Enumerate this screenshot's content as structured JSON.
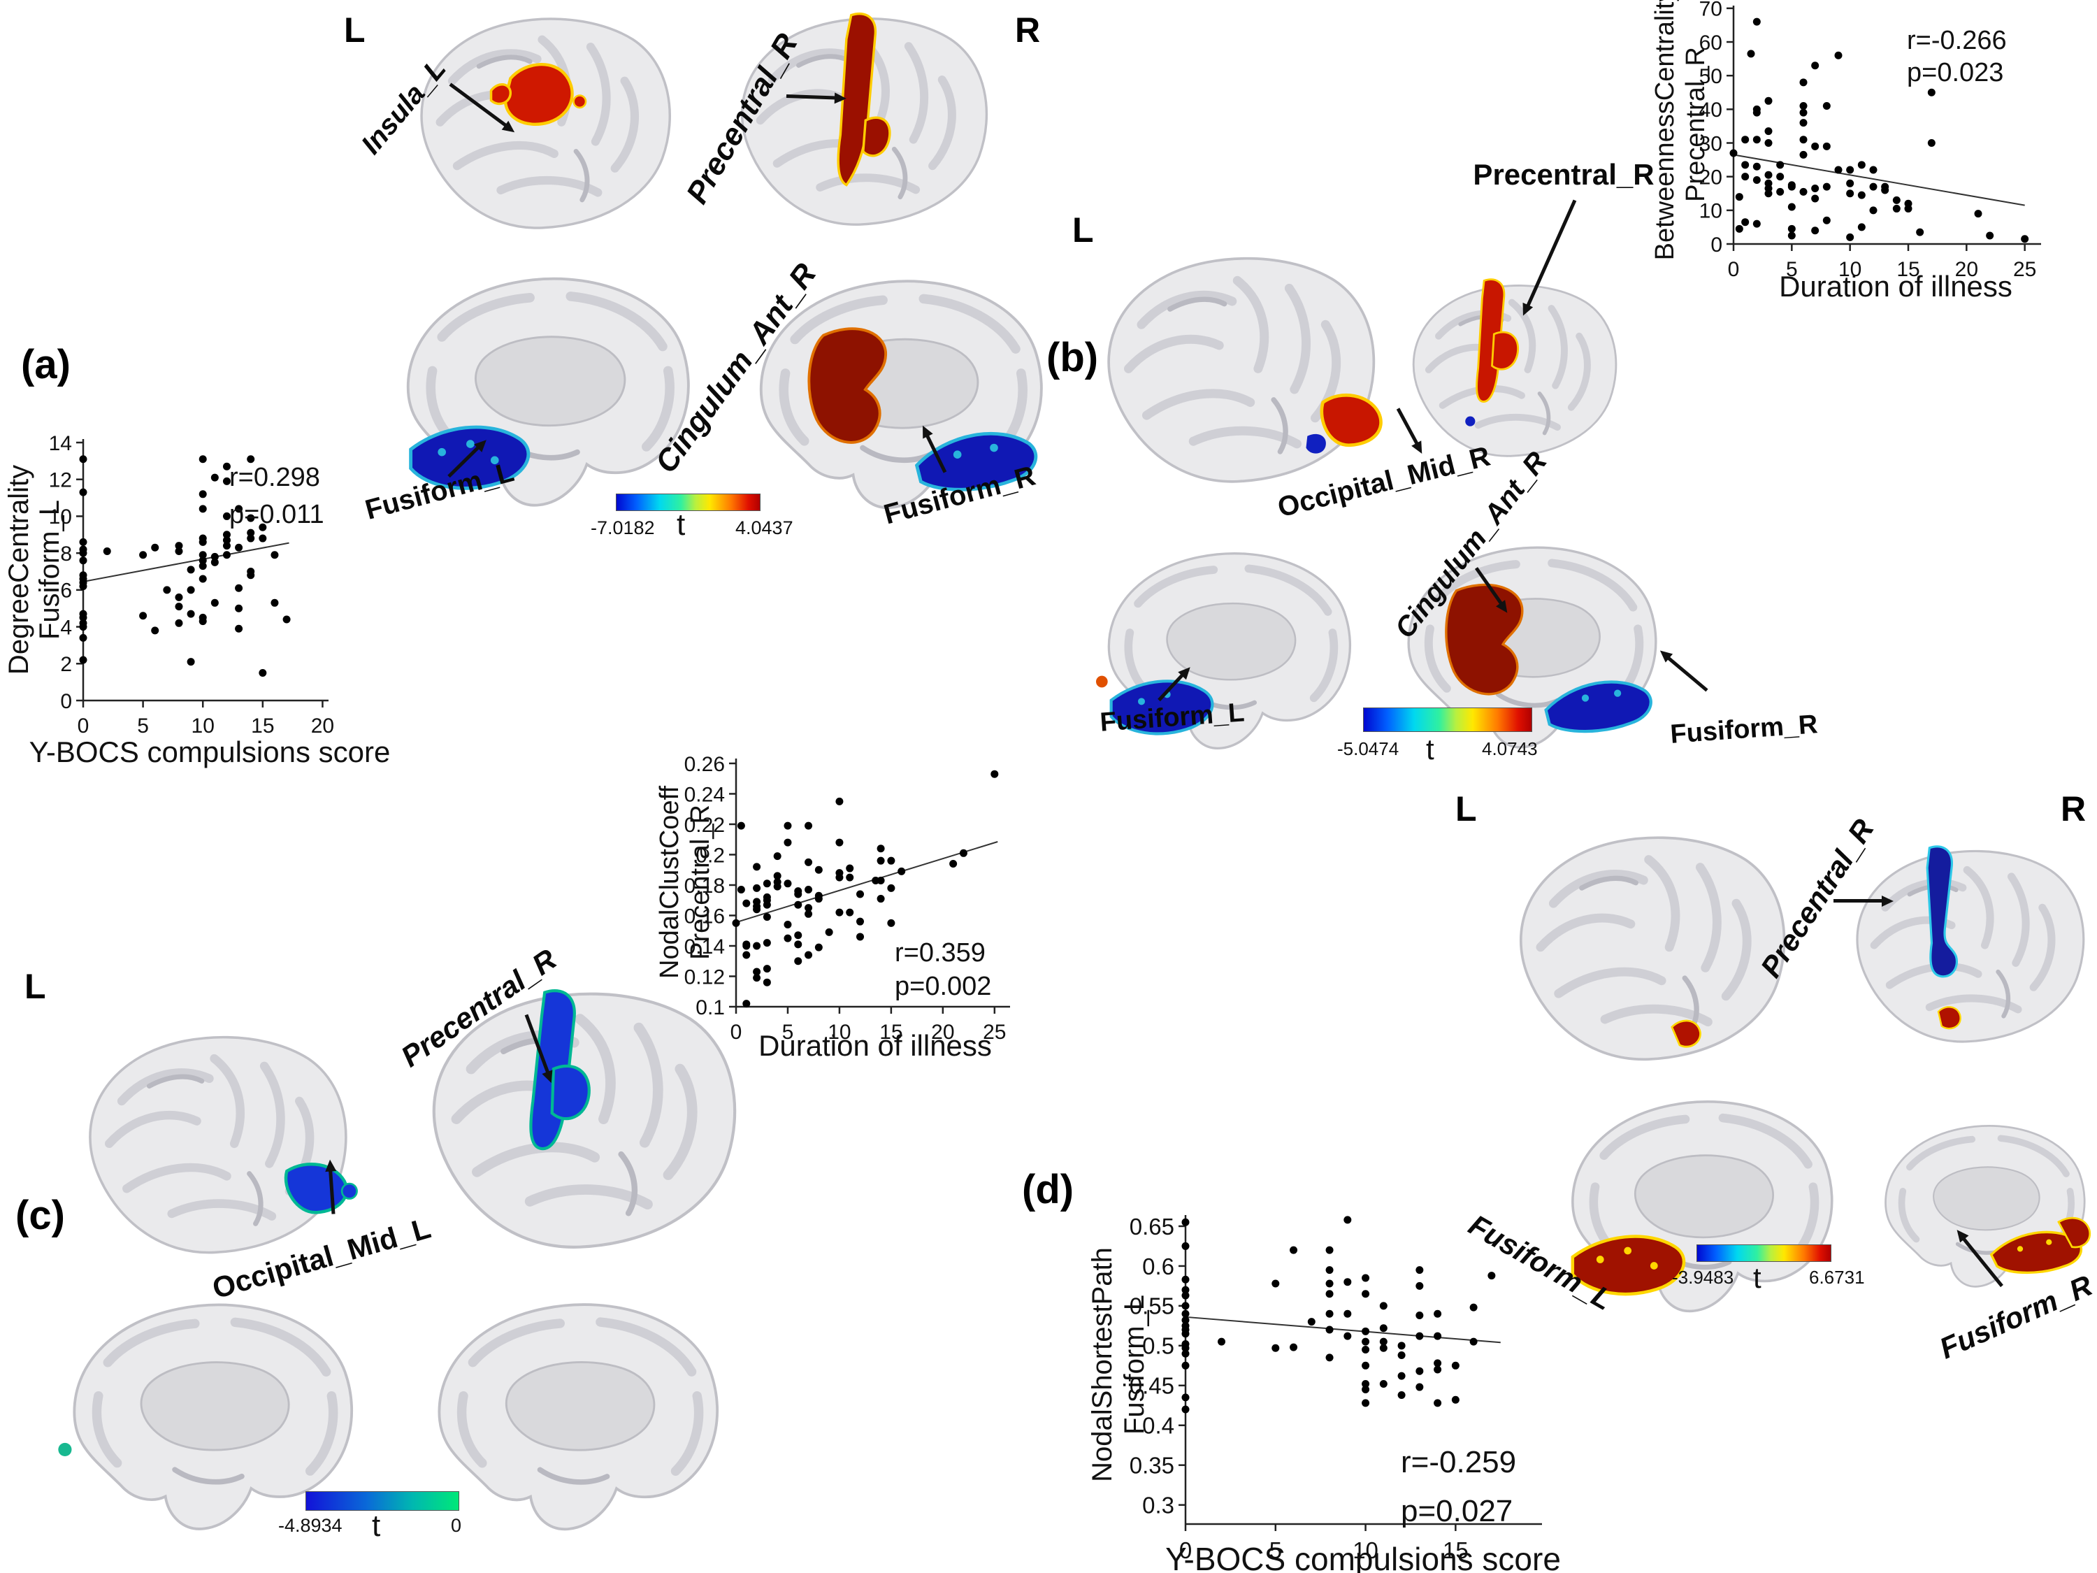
{
  "colors": {
    "positive_hot": "#c81600",
    "dark_red": "#8e1200",
    "negative_blue": "#1018b4",
    "dark_blue": "#141c9e",
    "medium_blue": "#1536d8",
    "teal_fringe": "#00b894",
    "cyan_fringe": "#28b4dc",
    "yellow_fringe": "#ffcc00",
    "scatter_point": "#000000"
  },
  "panel_a": {
    "letter": "(a)",
    "left_hemi": "L",
    "right_hemi": "R",
    "labels": {
      "insula": "Insula_L",
      "precentral": "Precentral_R",
      "cingulum": "Cingulum_Ant_R",
      "fusiform_l": "Fusiform_L",
      "fusiform_r": "Fusiform_R"
    },
    "colorbar": {
      "min": "-7.0182",
      "t": "t",
      "max": "4.0437"
    }
  },
  "panel_b": {
    "letter": "(b)",
    "left_hemi": "L",
    "labels": {
      "precentral": "Precentral_R",
      "occipital": "Occipital_Mid_R",
      "cingulum": "Cingulum_Ant_R",
      "fusiform_l": "Fusiform_L",
      "fusiform_r": "Fusiform_R"
    },
    "colorbar": {
      "min": "-5.0474",
      "t": "t",
      "max": "4.0743"
    }
  },
  "panel_c": {
    "letter": "(c)",
    "left_hemi": "L",
    "labels": {
      "precentral": "Precentral_R",
      "occipital": "Occipital_Mid_L"
    },
    "colorbar": {
      "min": "-4.8934",
      "t": "t",
      "max": "0"
    }
  },
  "panel_d": {
    "letter": "(d)",
    "left_hemi": "L",
    "right_hemi": "R",
    "labels": {
      "precentral": "Precentral_R",
      "fusiform_l": "Fusiform_L",
      "fusiform_r": "Fusiform_R"
    },
    "colorbar": {
      "min": "-3.9483",
      "t": "t",
      "max": "6.6731"
    }
  },
  "chart_data": [
    {
      "id": "a",
      "type": "scatter",
      "xlabel": "Y-BOCS compulsions score",
      "ylabel_lines": [
        "DegreeCentrality",
        "Fusiform_L"
      ],
      "xlim": [
        0,
        20.5
      ],
      "ylim": [
        0,
        14.19
      ],
      "xticks": [
        0,
        5,
        10,
        15,
        20
      ],
      "yticks": [
        0,
        2,
        4,
        6,
        8,
        10,
        12,
        14
      ],
      "stats": [
        "r=0.298",
        "p=0.011"
      ],
      "fit": {
        "x": [
          0,
          17.2
        ],
        "y": [
          6.45,
          8.55
        ]
      },
      "points": [
        [
          0,
          13.1
        ],
        [
          0,
          11.3
        ],
        [
          0,
          8.6
        ],
        [
          0,
          8.2
        ],
        [
          0,
          8
        ],
        [
          0,
          7.6
        ],
        [
          0,
          6.8
        ],
        [
          0,
          6.6
        ],
        [
          0,
          6.4
        ],
        [
          0,
          6.2
        ],
        [
          0,
          4.7
        ],
        [
          0,
          4.5
        ],
        [
          0,
          4.2
        ],
        [
          0,
          4
        ],
        [
          0,
          3.4
        ],
        [
          0,
          2.2
        ],
        [
          2,
          8.1
        ],
        [
          5,
          7.9
        ],
        [
          5,
          4.6
        ],
        [
          6,
          8.3
        ],
        [
          6,
          3.8
        ],
        [
          7,
          6
        ],
        [
          8,
          8.4
        ],
        [
          8,
          8.1
        ],
        [
          8,
          5.6
        ],
        [
          8,
          5.1
        ],
        [
          8,
          4.2
        ],
        [
          9,
          7.1
        ],
        [
          9,
          6
        ],
        [
          9,
          4.7
        ],
        [
          9,
          2.1
        ],
        [
          10,
          13.1
        ],
        [
          10,
          11.2
        ],
        [
          10,
          10.4
        ],
        [
          10,
          8.8
        ],
        [
          10,
          8.6
        ],
        [
          10,
          7.9
        ],
        [
          10,
          7.6
        ],
        [
          10,
          7.3
        ],
        [
          10,
          6.6
        ],
        [
          10,
          4.5
        ],
        [
          10,
          4.3
        ],
        [
          11,
          12.1
        ],
        [
          11,
          7.8
        ],
        [
          11,
          7.5
        ],
        [
          11,
          5.3
        ],
        [
          12,
          12.7
        ],
        [
          12,
          11.9
        ],
        [
          12,
          10
        ],
        [
          12,
          9
        ],
        [
          12,
          8.7
        ],
        [
          12,
          8.4
        ],
        [
          12,
          7.9
        ],
        [
          13,
          10.4
        ],
        [
          13,
          8.3
        ],
        [
          13,
          6.1
        ],
        [
          13,
          5
        ],
        [
          13,
          3.9
        ],
        [
          14,
          13.1
        ],
        [
          14,
          9.9
        ],
        [
          14,
          9.1
        ],
        [
          14,
          8.8
        ],
        [
          14,
          7
        ],
        [
          14,
          6.8
        ],
        [
          15,
          9.4
        ],
        [
          15,
          8.8
        ],
        [
          15,
          1.5
        ],
        [
          16,
          7.9
        ],
        [
          16,
          5.3
        ],
        [
          17,
          4.4
        ]
      ]
    },
    {
      "id": "b",
      "type": "scatter",
      "xlabel": "Duration of illness",
      "ylabel_lines": [
        "BetweennessCentrality",
        "Precentral_R"
      ],
      "xlim": [
        0,
        26.4
      ],
      "ylim": [
        0,
        70.8
      ],
      "xticks": [
        0,
        5,
        10,
        15,
        20,
        25
      ],
      "yticks": [
        0,
        10,
        20,
        30,
        40,
        50,
        60,
        70
      ],
      "stats": [
        "r=-0.266",
        "p=0.023"
      ],
      "fit": {
        "x": [
          0,
          25
        ],
        "y": [
          26.5,
          11.5
        ]
      },
      "points": [
        [
          0,
          27
        ],
        [
          0.5,
          14
        ],
        [
          0.5,
          4.5
        ],
        [
          1,
          31
        ],
        [
          1,
          23.5
        ],
        [
          1,
          20
        ],
        [
          1,
          6.5
        ],
        [
          1.5,
          56.5
        ],
        [
          2,
          66
        ],
        [
          2,
          40
        ],
        [
          2,
          39
        ],
        [
          2,
          31
        ],
        [
          2,
          23
        ],
        [
          2,
          19
        ],
        [
          2,
          6
        ],
        [
          3,
          42.5
        ],
        [
          3,
          33.5
        ],
        [
          3,
          30
        ],
        [
          3,
          20.5
        ],
        [
          3,
          18
        ],
        [
          3,
          16.5
        ],
        [
          3,
          15
        ],
        [
          4,
          23.5
        ],
        [
          4,
          20
        ],
        [
          4,
          15.5
        ],
        [
          5,
          17.5
        ],
        [
          5,
          17
        ],
        [
          5,
          11
        ],
        [
          5,
          4.5
        ],
        [
          5,
          2.5
        ],
        [
          6,
          48
        ],
        [
          6,
          41
        ],
        [
          6,
          39
        ],
        [
          6,
          36
        ],
        [
          6,
          31
        ],
        [
          6,
          26.5
        ],
        [
          6,
          15.5
        ],
        [
          7,
          53
        ],
        [
          7,
          29
        ],
        [
          7,
          16.5
        ],
        [
          7,
          13.5
        ],
        [
          7,
          4
        ],
        [
          8,
          41
        ],
        [
          8,
          29
        ],
        [
          8,
          17
        ],
        [
          8,
          7
        ],
        [
          9,
          56
        ],
        [
          9,
          22
        ],
        [
          10,
          22
        ],
        [
          10,
          18
        ],
        [
          10,
          15
        ],
        [
          10,
          2
        ],
        [
          11,
          23.5
        ],
        [
          11,
          14.5
        ],
        [
          11,
          5
        ],
        [
          12,
          22
        ],
        [
          12,
          17
        ],
        [
          12,
          10
        ],
        [
          13,
          17
        ],
        [
          13,
          16
        ],
        [
          14,
          13
        ],
        [
          14,
          10.5
        ],
        [
          15,
          12
        ],
        [
          15,
          10.5
        ],
        [
          16,
          3.5
        ],
        [
          17,
          45
        ],
        [
          17,
          30
        ],
        [
          21,
          9
        ],
        [
          22,
          2.5
        ],
        [
          25,
          1.5
        ]
      ]
    },
    {
      "id": "c",
      "type": "scatter",
      "xlabel": "Duration of illness",
      "ylabel_lines": [
        "NodalClustCoeff",
        "Precentral_R"
      ],
      "xlim": [
        0,
        26.5
      ],
      "ylim": [
        0.1,
        0.2632
      ],
      "xticks": [
        0,
        5,
        10,
        15,
        20,
        25
      ],
      "yticks": [
        0.1,
        0.12,
        0.14,
        0.16,
        0.18,
        0.2,
        0.22,
        0.24,
        0.26
      ],
      "ytick_labels": [
        "0.1",
        "0.12",
        "0.14",
        "0.16",
        "0.18",
        "0.2",
        "0.22",
        "0.24",
        "0.26"
      ],
      "stats": [
        "r=0.359",
        "p=0.002"
      ],
      "fit": {
        "x": [
          0,
          25.3
        ],
        "y": [
          0.1555,
          0.2085
        ]
      },
      "points": [
        [
          0,
          0.155
        ],
        [
          0.5,
          0.219
        ],
        [
          0.5,
          0.177
        ],
        [
          1,
          0.168
        ],
        [
          1,
          0.141
        ],
        [
          1,
          0.14
        ],
        [
          1,
          0.134
        ],
        [
          1,
          0.102
        ],
        [
          2,
          0.192
        ],
        [
          2,
          0.178
        ],
        [
          2,
          0.169
        ],
        [
          2,
          0.166
        ],
        [
          2,
          0.164
        ],
        [
          2,
          0.14
        ],
        [
          2,
          0.123
        ],
        [
          2,
          0.119
        ],
        [
          3,
          0.181
        ],
        [
          3,
          0.172
        ],
        [
          3,
          0.17
        ],
        [
          3,
          0.167
        ],
        [
          3,
          0.159
        ],
        [
          3,
          0.142
        ],
        [
          3,
          0.125
        ],
        [
          3,
          0.116
        ],
        [
          4,
          0.199
        ],
        [
          4,
          0.186
        ],
        [
          4,
          0.182
        ],
        [
          4,
          0.179
        ],
        [
          5,
          0.219
        ],
        [
          5,
          0.208
        ],
        [
          5,
          0.181
        ],
        [
          5,
          0.154
        ],
        [
          5,
          0.145
        ],
        [
          6,
          0.176
        ],
        [
          6,
          0.174
        ],
        [
          6,
          0.167
        ],
        [
          6,
          0.147
        ],
        [
          6,
          0.141
        ],
        [
          6,
          0.13
        ],
        [
          7,
          0.219
        ],
        [
          7,
          0.195
        ],
        [
          7,
          0.177
        ],
        [
          7,
          0.165
        ],
        [
          7,
          0.161
        ],
        [
          7,
          0.134
        ],
        [
          8,
          0.19
        ],
        [
          8,
          0.173
        ],
        [
          8,
          0.171
        ],
        [
          8,
          0.139
        ],
        [
          9,
          0.149
        ],
        [
          10,
          0.235
        ],
        [
          10,
          0.208
        ],
        [
          10,
          0.188
        ],
        [
          10,
          0.185
        ],
        [
          10,
          0.162
        ],
        [
          11,
          0.191
        ],
        [
          11,
          0.185
        ],
        [
          11,
          0.162
        ],
        [
          12,
          0.174
        ],
        [
          12,
          0.156
        ],
        [
          12,
          0.146
        ],
        [
          13.5,
          0.183
        ],
        [
          14,
          0.204
        ],
        [
          14,
          0.196
        ],
        [
          14,
          0.183
        ],
        [
          14,
          0.171
        ],
        [
          15,
          0.196
        ],
        [
          15,
          0.178
        ],
        [
          15,
          0.155
        ],
        [
          16,
          0.189
        ],
        [
          21,
          0.194
        ],
        [
          22,
          0.201
        ],
        [
          25,
          0.253
        ]
      ]
    },
    {
      "id": "d",
      "type": "scatter",
      "xlabel": "Y-BOCS compulsions score",
      "ylabel_lines": [
        "NodalShortestPath",
        "Fusiform_L"
      ],
      "xlim": [
        0,
        19.8
      ],
      "ylim": [
        0.276,
        0.664
      ],
      "xticks": [
        0,
        5,
        10,
        15
      ],
      "yticks": [
        0.3,
        0.35,
        0.4,
        0.45,
        0.5,
        0.55,
        0.6,
        0.65
      ],
      "ytick_labels": [
        "0.3",
        "0.35",
        "0.4",
        "0.45",
        "0.5",
        "0.55",
        "0.6",
        "0.65"
      ],
      "stats": [
        "r=-0.259",
        "p=0.027"
      ],
      "fit": {
        "x": [
          0,
          17.5
        ],
        "y": [
          0.536,
          0.504
        ]
      },
      "points": [
        [
          0,
          0.655
        ],
        [
          0,
          0.625
        ],
        [
          0,
          0.583
        ],
        [
          0,
          0.57
        ],
        [
          0,
          0.563
        ],
        [
          0,
          0.55
        ],
        [
          0,
          0.54
        ],
        [
          0,
          0.532
        ],
        [
          0,
          0.525
        ],
        [
          0,
          0.52
        ],
        [
          0,
          0.515
        ],
        [
          0,
          0.502
        ],
        [
          0,
          0.497
        ],
        [
          0,
          0.49
        ],
        [
          0,
          0.475
        ],
        [
          0,
          0.435
        ],
        [
          0,
          0.42
        ],
        [
          2,
          0.505
        ],
        [
          5,
          0.578
        ],
        [
          5,
          0.497
        ],
        [
          6,
          0.62
        ],
        [
          6,
          0.498
        ],
        [
          7,
          0.53
        ],
        [
          8,
          0.62
        ],
        [
          8,
          0.595
        ],
        [
          8,
          0.578
        ],
        [
          8,
          0.565
        ],
        [
          8,
          0.54
        ],
        [
          8,
          0.52
        ],
        [
          8,
          0.485
        ],
        [
          9,
          0.658
        ],
        [
          9,
          0.58
        ],
        [
          9,
          0.54
        ],
        [
          9,
          0.512
        ],
        [
          10,
          0.585
        ],
        [
          10,
          0.565
        ],
        [
          10,
          0.518
        ],
        [
          10,
          0.505
        ],
        [
          10,
          0.495
        ],
        [
          10,
          0.475
        ],
        [
          10,
          0.452
        ],
        [
          10,
          0.445
        ],
        [
          10,
          0.428
        ],
        [
          11,
          0.55
        ],
        [
          11,
          0.522
        ],
        [
          11,
          0.505
        ],
        [
          11,
          0.497
        ],
        [
          11,
          0.452
        ],
        [
          12,
          0.5
        ],
        [
          12,
          0.488
        ],
        [
          12,
          0.462
        ],
        [
          12,
          0.438
        ],
        [
          13,
          0.595
        ],
        [
          13,
          0.575
        ],
        [
          13,
          0.538
        ],
        [
          13,
          0.512
        ],
        [
          13,
          0.468
        ],
        [
          13,
          0.448
        ],
        [
          14,
          0.54
        ],
        [
          14,
          0.512
        ],
        [
          14,
          0.478
        ],
        [
          14,
          0.47
        ],
        [
          14,
          0.428
        ],
        [
          15,
          0.475
        ],
        [
          15,
          0.432
        ],
        [
          16,
          0.548
        ],
        [
          16,
          0.505
        ],
        [
          17,
          0.588
        ]
      ]
    }
  ]
}
